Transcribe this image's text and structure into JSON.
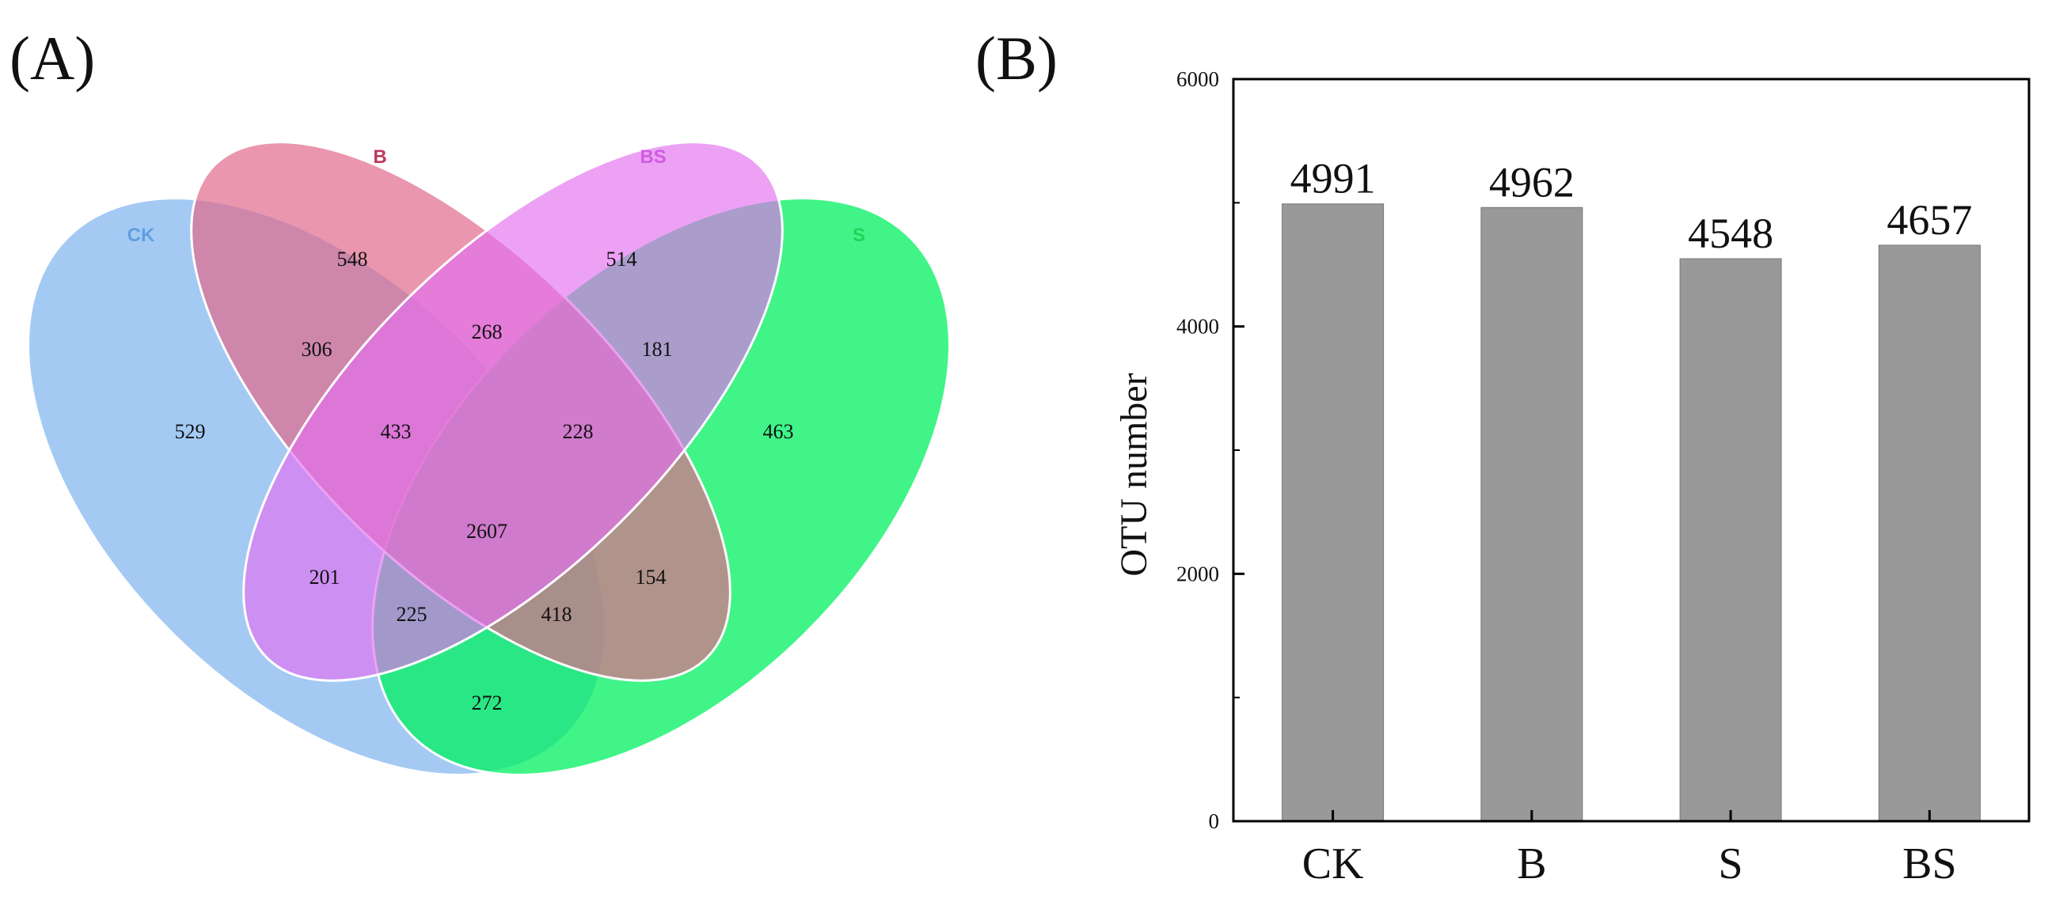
{
  "panel_a": {
    "label": "(A)",
    "venn": {
      "sets": [
        {
          "name": "CK",
          "color": "#5f9fe0"
        },
        {
          "name": "B",
          "color": "#c0385d"
        },
        {
          "name": "BS",
          "color": "#d05ce0"
        },
        {
          "name": "S",
          "color": "#1fd45a"
        }
      ],
      "regions": {
        "CK_only": "529",
        "B_only": "548",
        "BS_only": "514",
        "S_only": "463",
        "CK_B": "306",
        "B_BS": "268",
        "BS_S": "181",
        "CK_B_BS": "433",
        "B_BS_S": "228",
        "all": "2607",
        "CK_BS": "201",
        "B_S": "154",
        "CK_BS_S": "225",
        "CK_B_S": "418",
        "CK_S": "272"
      }
    }
  },
  "panel_b": {
    "label": "(B)",
    "chart_data": {
      "type": "bar",
      "categories": [
        "CK",
        "B",
        "S",
        "BS"
      ],
      "values": [
        4991,
        4962,
        4548,
        4657
      ],
      "value_labels": [
        "4991",
        "4962",
        "4548",
        "4657"
      ],
      "title": "",
      "xlabel": "",
      "ylabel": "OTU number",
      "ylim": [
        0,
        6000
      ],
      "yticks": [
        0,
        2000,
        4000,
        6000
      ],
      "ytick_labels": [
        "0",
        "2000",
        "4000",
        "6000"
      ],
      "bar_color": "#999999",
      "grid": false
    }
  }
}
